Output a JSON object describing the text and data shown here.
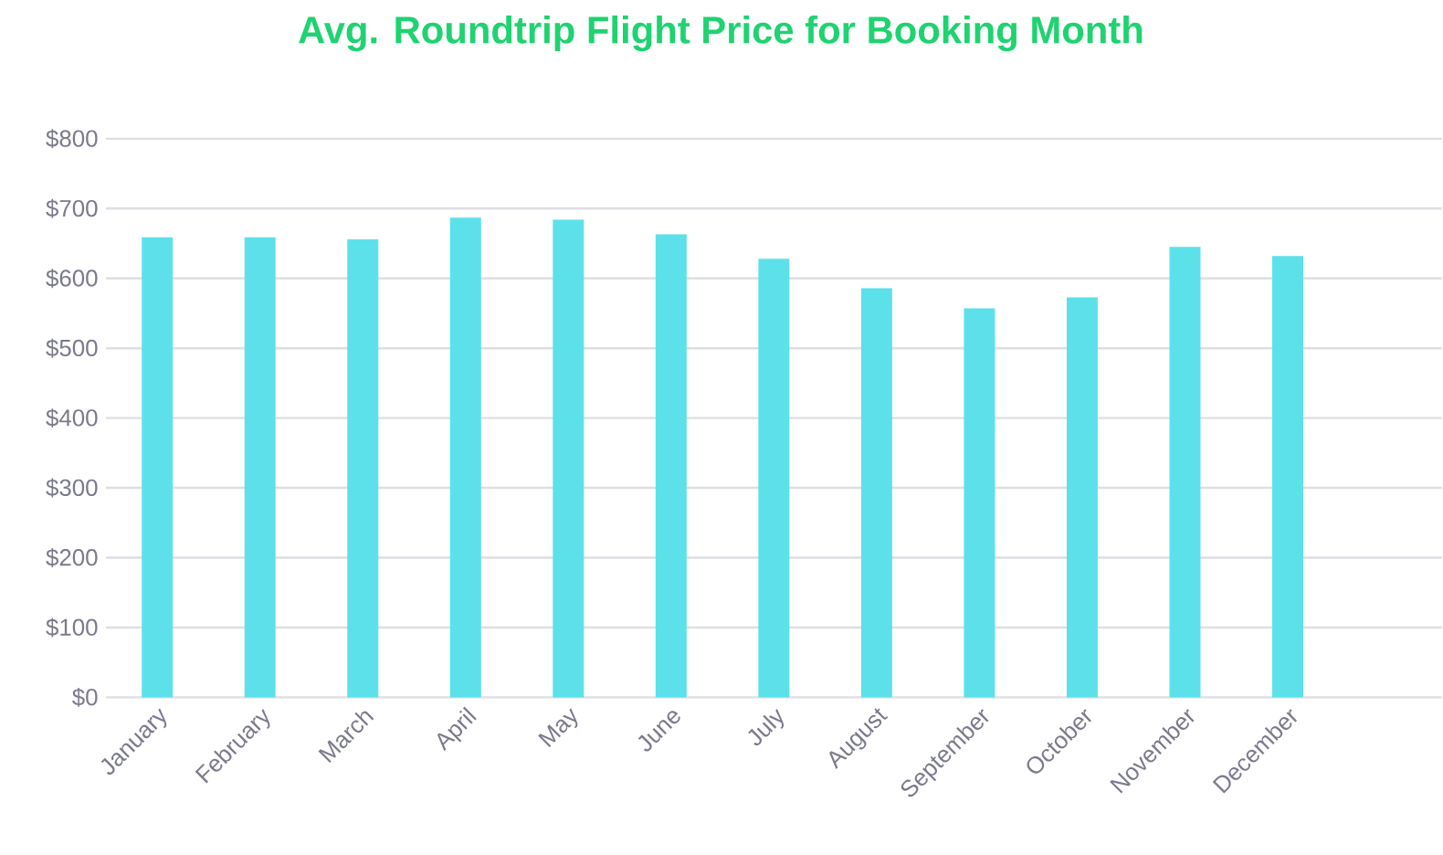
{
  "chart_data": {
    "type": "bar",
    "title": "Avg. Roundtrip Flight Price for Booking Month",
    "categories": [
      "January",
      "February",
      "March",
      "April",
      "May",
      "June",
      "July",
      "August",
      "September",
      "October",
      "November",
      "December",
      null
    ],
    "values": [
      659,
      659,
      656,
      687,
      684,
      663,
      628,
      586,
      557,
      573,
      645,
      632,
      null
    ],
    "color": "#5ce1eb",
    "ylim": [
      0,
      800
    ],
    "yticks": [
      {
        "value": 0,
        "label": "$0"
      },
      {
        "value": 100,
        "label": "$100"
      },
      {
        "value": 200,
        "label": "$200"
      },
      {
        "value": 300,
        "label": "$300"
      },
      {
        "value": 400,
        "label": "$400"
      },
      {
        "value": 500,
        "label": "$500"
      },
      {
        "value": 600,
        "label": "$600"
      },
      {
        "value": 700,
        "label": "$700"
      },
      {
        "value": 800,
        "label": "$800"
      }
    ],
    "grid": "y"
  }
}
